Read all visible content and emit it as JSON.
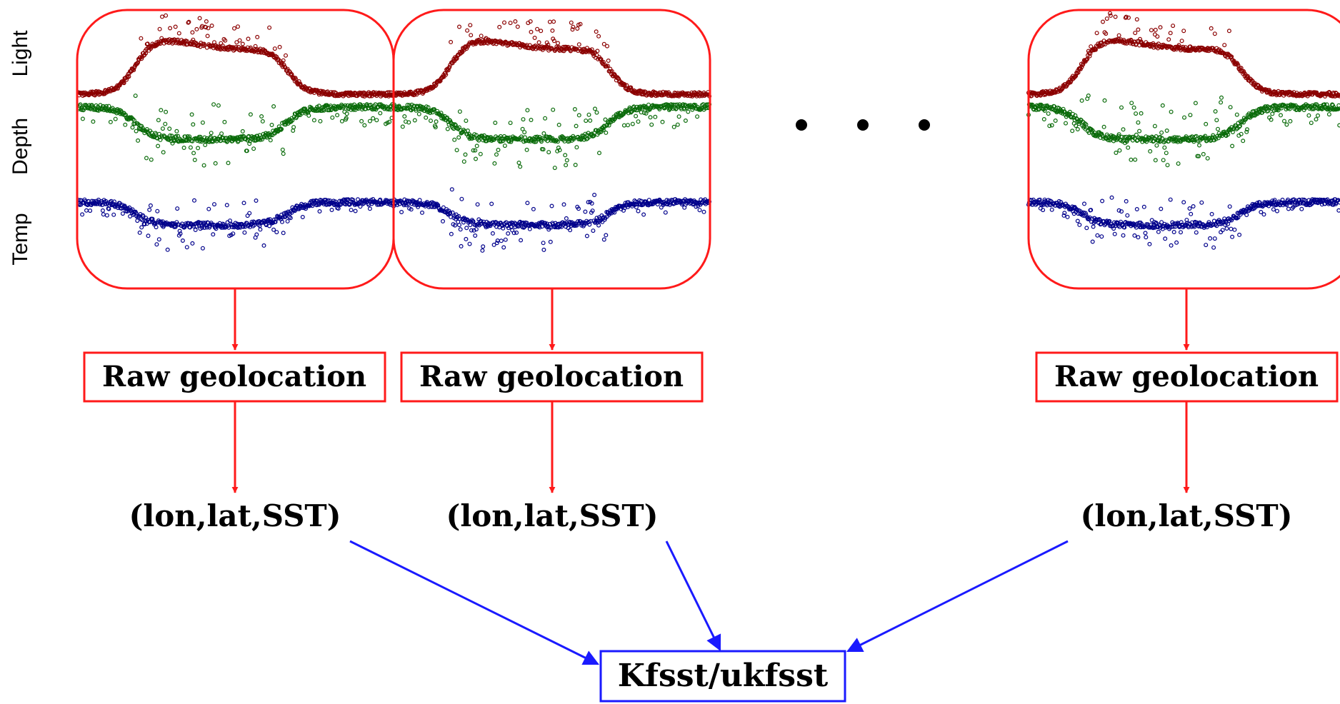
{
  "channels": {
    "light": "Light",
    "depth": "Depth",
    "temp": "Temp"
  },
  "stages": [
    {
      "geolocation_label": "Raw geolocation",
      "output_label": "(lon,lat,SST)"
    },
    {
      "geolocation_label": "Raw geolocation",
      "output_label": "(lon,lat,SST)"
    },
    {
      "geolocation_label": "Raw geolocation",
      "output_label": "(lon,lat,SST)"
    }
  ],
  "ellipsis": "…",
  "final_node": {
    "label": "Kfsst/ukfsst"
  },
  "colors": {
    "frame": "#ff1a1a",
    "light_series": "#8b0000",
    "depth_series": "#0a6b0a",
    "temp_series": "#00008b",
    "merge_arrow": "#1a1aff",
    "text": "#000000"
  }
}
